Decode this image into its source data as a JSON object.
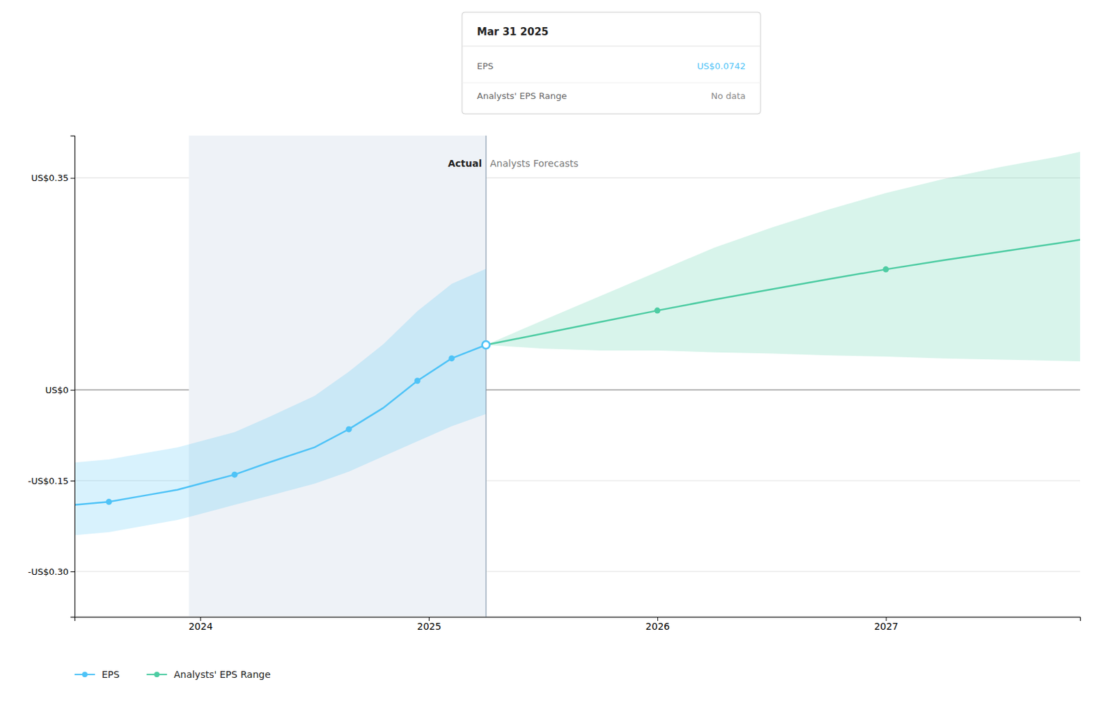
{
  "chart_data": {
    "type": "line",
    "xlim": [
      2023.45,
      2027.85
    ],
    "xticks": [
      2024,
      2025,
      2026,
      2027
    ],
    "ylim": [
      -0.375,
      0.42
    ],
    "yticks": [
      {
        "value": -0.3,
        "label": "-US$0.30"
      },
      {
        "value": -0.15,
        "label": "-US$0.15"
      },
      {
        "value": 0.0,
        "label": "US$0"
      },
      {
        "value": 0.35,
        "label": "US$0.35"
      }
    ],
    "grid": true,
    "legend": "lower left",
    "series": [
      {
        "name": "EPS",
        "type": "line",
        "color": "#4fc3f7",
        "x": [
          2023.45,
          2023.6,
          2023.75,
          2023.9,
          2024.0,
          2024.15,
          2024.3,
          2024.5,
          2024.65,
          2024.8,
          2024.95,
          2025.1,
          2025.25
        ],
        "values": [
          -0.19,
          -0.185,
          -0.175,
          -0.165,
          -0.155,
          -0.14,
          -0.12,
          -0.095,
          -0.065,
          -0.03,
          0.015,
          0.052,
          0.0742
        ],
        "upper": [
          -0.12,
          -0.115,
          -0.105,
          -0.095,
          -0.085,
          -0.07,
          -0.045,
          -0.01,
          0.03,
          0.075,
          0.13,
          0.175,
          0.2
        ],
        "lower": [
          -0.24,
          -0.235,
          -0.225,
          -0.215,
          -0.205,
          -0.19,
          -0.175,
          -0.155,
          -0.135,
          -0.11,
          -0.085,
          -0.06,
          -0.04
        ]
      },
      {
        "name": "Analysts' EPS Range",
        "type": "line",
        "color": "#4ecca3",
        "x": [
          2025.25,
          2025.5,
          2025.75,
          2026.0,
          2026.25,
          2026.5,
          2026.75,
          2027.0,
          2027.25,
          2027.5,
          2027.75,
          2027.85
        ],
        "values": [
          0.0742,
          0.093,
          0.112,
          0.131,
          0.149,
          0.166,
          0.183,
          0.199,
          0.214,
          0.228,
          0.242,
          0.248
        ],
        "upper": [
          0.0742,
          0.115,
          0.155,
          0.195,
          0.235,
          0.268,
          0.298,
          0.325,
          0.348,
          0.368,
          0.385,
          0.393
        ],
        "lower": [
          0.0742,
          0.068,
          0.065,
          0.065,
          0.062,
          0.06,
          0.057,
          0.055,
          0.052,
          0.05,
          0.048,
          0.047
        ]
      },
      {
        "type": "scatter",
        "color": "#4fc3f7",
        "x": [
          2023.6,
          2024.15,
          2024.65,
          2024.95,
          2025.1,
          2025.25
        ],
        "values": [
          -0.185,
          -0.14,
          -0.065,
          0.015,
          0.052,
          0.0742
        ]
      },
      {
        "type": "scatter",
        "color": "#4ecca3",
        "x": [
          2025.25,
          2026.0,
          2027.0
        ],
        "values": [
          0.0742,
          0.131,
          0.199
        ]
      }
    ],
    "highlight_x": [
      2023.95,
      2025.25
    ],
    "divider_x": 2025.25,
    "annotations": [
      {
        "text": "Actual",
        "x": 2025.25,
        "y": 0.368
      },
      {
        "text": "Analysts Forecasts",
        "x": 2025.25,
        "y": 0.368
      }
    ],
    "tooltip": {
      "title": "Mar 31 2025",
      "rows": [
        {
          "label": "EPS",
          "value": "US$0.0742"
        },
        {
          "label": "Analysts' EPS Range",
          "value": "No data"
        }
      ]
    }
  }
}
